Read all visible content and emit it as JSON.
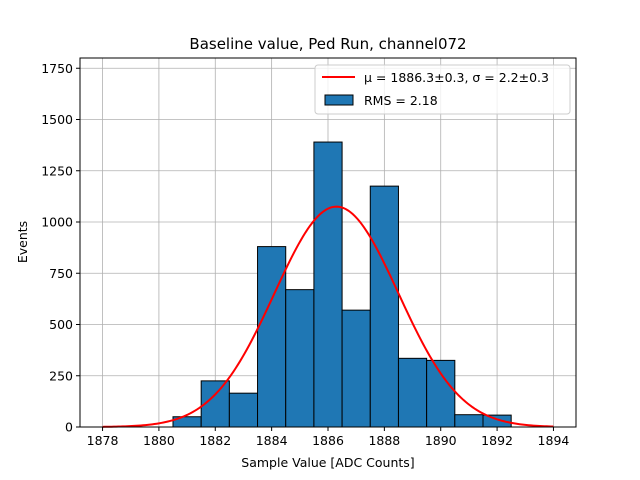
{
  "chart_data": {
    "type": "bar",
    "title": "Baseline value, Ped Run, channel072",
    "xlabel": "Sample Value [ADC Counts]",
    "ylabel": "Events",
    "xlim": [
      1877.2,
      1894.8
    ],
    "ylim": [
      0,
      1800
    ],
    "grid": true,
    "legend_placement": "top-right",
    "x_ticks": [
      1878,
      1880,
      1882,
      1884,
      1886,
      1888,
      1890,
      1892,
      1894
    ],
    "y_ticks": [
      0,
      250,
      500,
      750,
      1000,
      1250,
      1500,
      1750
    ],
    "bins": [
      {
        "x0": 1880.5,
        "x1": 1881.5,
        "count": 50
      },
      {
        "x0": 1881.5,
        "x1": 1882.5,
        "count": 225
      },
      {
        "x0": 1882.5,
        "x1": 1883.5,
        "count": 165
      },
      {
        "x0": 1883.5,
        "x1": 1884.5,
        "count": 880
      },
      {
        "x0": 1884.5,
        "x1": 1885.5,
        "count": 670
      },
      {
        "x0": 1885.5,
        "x1": 1886.5,
        "count": 1390
      },
      {
        "x0": 1886.5,
        "x1": 1887.5,
        "count": 570
      },
      {
        "x0": 1887.5,
        "x1": 1888.5,
        "count": 1175
      },
      {
        "x0": 1888.5,
        "x1": 1889.5,
        "count": 335
      },
      {
        "x0": 1889.5,
        "x1": 1890.5,
        "count": 325
      },
      {
        "x0": 1890.5,
        "x1": 1891.5,
        "count": 60
      },
      {
        "x0": 1891.5,
        "x1": 1892.5,
        "count": 58
      }
    ],
    "fit": {
      "type": "gaussian",
      "mu": 1886.3,
      "sigma": 2.2,
      "amplitude": 1075,
      "x_range": [
        1878,
        1894
      ]
    },
    "legend": {
      "fit_label": "μ = 1886.3±0.3, σ = 2.2±0.3",
      "hist_label": "RMS = 2.18"
    },
    "colors": {
      "bar_fill": "#1f77b4",
      "bar_edge": "#000000",
      "fit_line": "#ff0000",
      "grid": "#b0b0b0"
    }
  }
}
